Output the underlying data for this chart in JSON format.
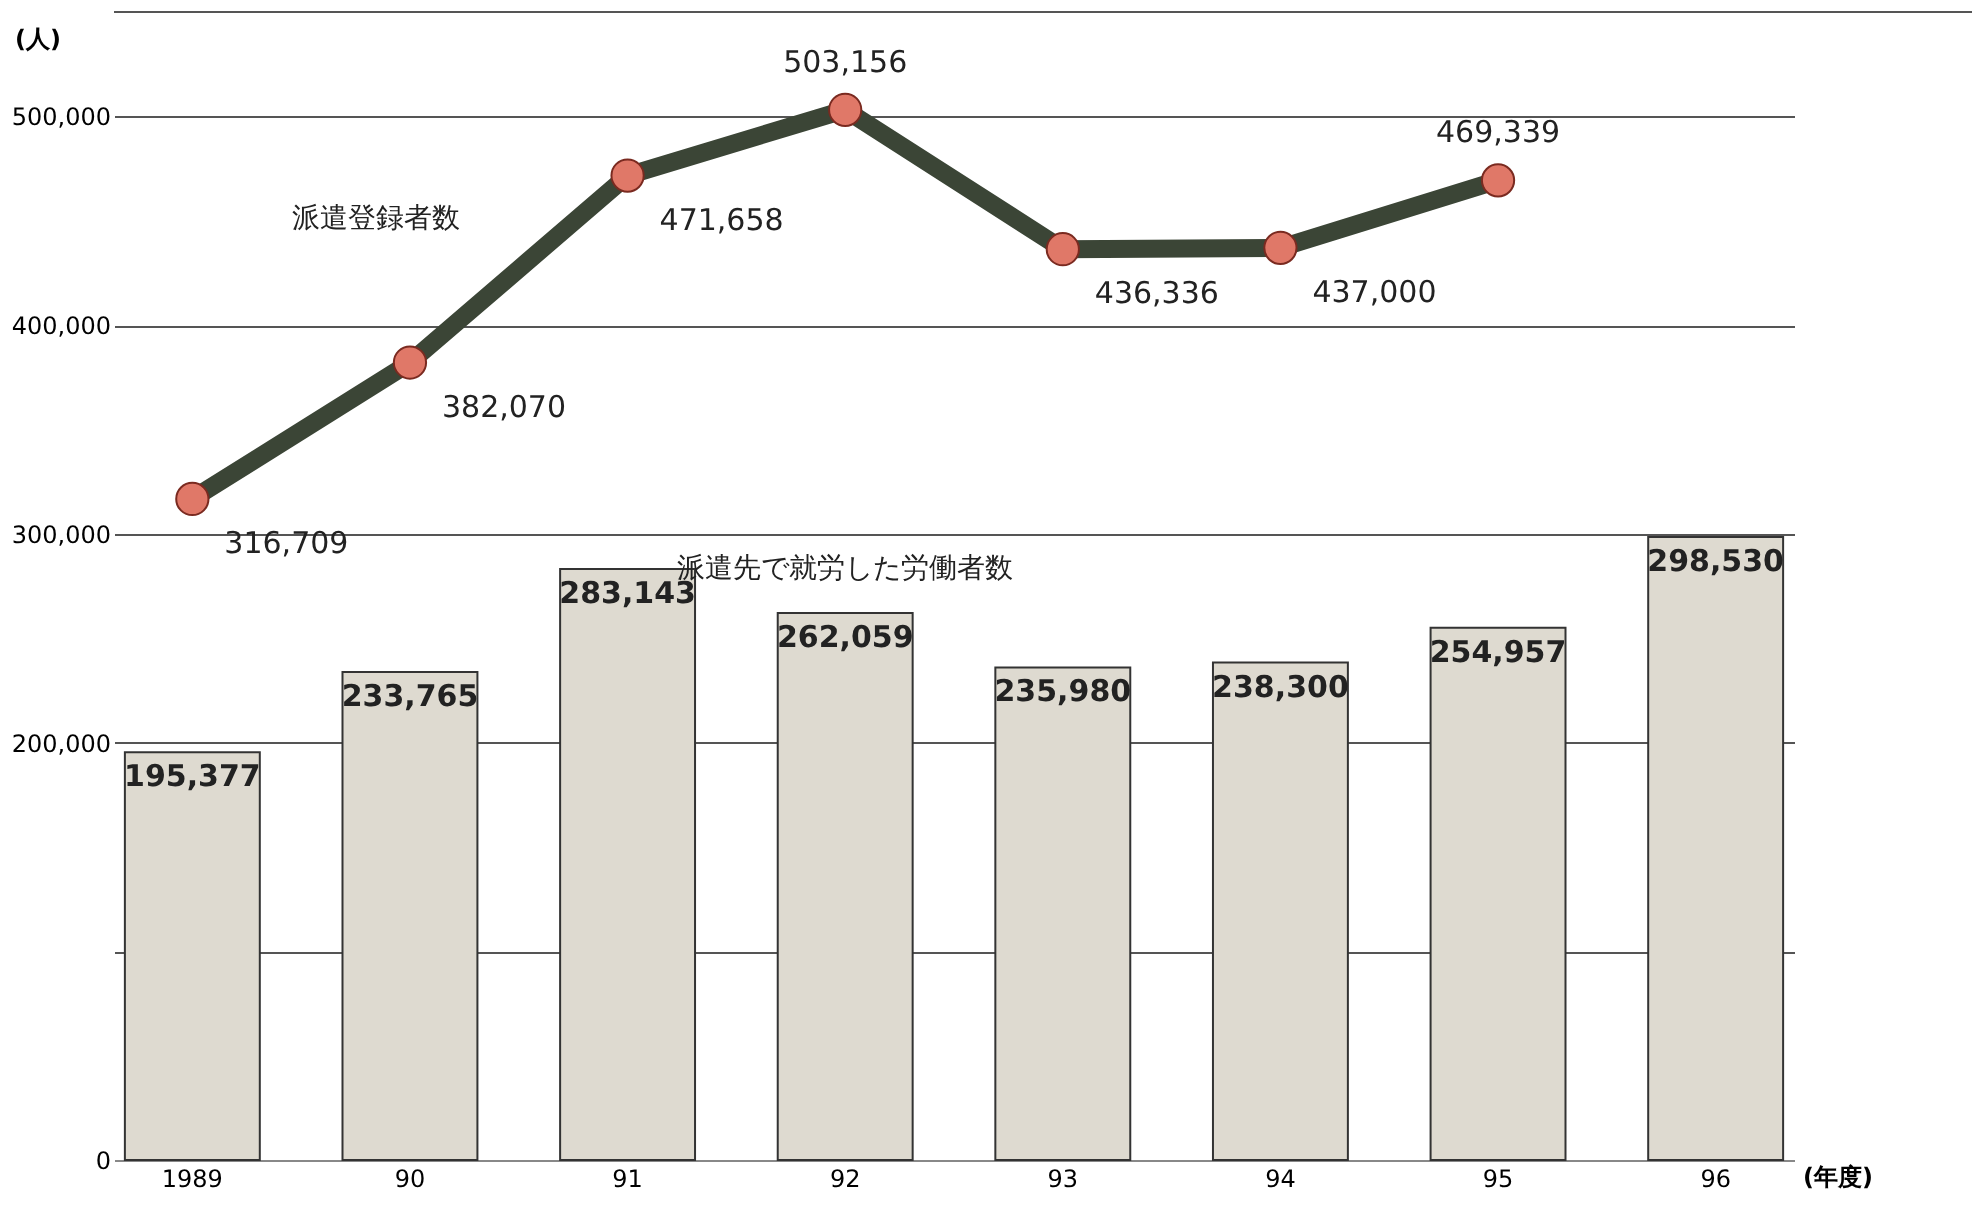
{
  "chart_data": {
    "type": "bar",
    "xlabel": "(年度)",
    "ylabel": "(人)",
    "categories": [
      "1989",
      "90",
      "91",
      "92",
      "93",
      "94",
      "95",
      "96"
    ],
    "series": [
      {
        "name": "派遣先で就労した労働者数",
        "color": "#dedad0",
        "values": [
          195377,
          233765,
          283143,
          262059,
          235980,
          238300,
          254957,
          298530
        ],
        "value_labels": [
          "195,377",
          "233,765",
          "283,143",
          "262,059",
          "235,980",
          "238,300",
          "254,957",
          "298,530"
        ]
      },
      {
        "name": "派遣登録者数",
        "type": "line",
        "color": "#3b4536",
        "values": [
          316709,
          382070,
          471658,
          503156,
          436336,
          437000,
          469339,
          null
        ],
        "value_labels": [
          "316,709",
          "382,070",
          "471,658",
          "503,156",
          "436,336",
          "437,000",
          "469,339",
          null
        ]
      }
    ],
    "ylim": [
      0,
      550000
    ],
    "yticks": [
      0,
      {
        "value": 100000,
        "label": null
      },
      {
        "value": 200000,
        "label": "200,000"
      },
      {
        "value": 300000,
        "label": "300,000"
      },
      {
        "value": 400000,
        "label": "400,000"
      },
      {
        "value": 500000,
        "label": "500,000"
      }
    ],
    "grid": "y",
    "marker": "circle",
    "line_style": "solid"
  }
}
